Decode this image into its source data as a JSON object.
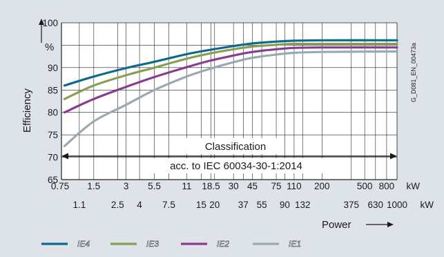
{
  "chart_data": {
    "type": "line",
    "xlabel": "Power",
    "ylabel": "Efficiency",
    "unit_label": "%",
    "ylim": [
      65,
      100
    ],
    "yticks": [
      65,
      70,
      75,
      80,
      85,
      90,
      95,
      100
    ],
    "x_unit": "kW",
    "x_categories_top": [
      "0.75",
      "1.5",
      "3",
      "5.5",
      "11",
      "18.5",
      "30",
      "45",
      "75",
      "110",
      "200",
      "500",
      "800"
    ],
    "x_categories_bottom": [
      "1.1",
      "2.5",
      "4",
      "7.5",
      "15",
      "20",
      "37",
      "55",
      "90",
      "132",
      "375",
      "630",
      "1000"
    ],
    "x_scale": "categorical-log",
    "grid": true,
    "series": [
      {
        "name": "IE4",
        "color": "#0d6a8f",
        "x": [
          0.75,
          1.5,
          3,
          5.5,
          11,
          18.5,
          30,
          45,
          75,
          110,
          200,
          1000
        ],
        "y": [
          86.0,
          88.0,
          89.9,
          91.3,
          93.0,
          94.0,
          94.8,
          95.4,
          95.8,
          96.0,
          96.1,
          96.1
        ]
      },
      {
        "name": "IE3",
        "color": "#8a9e52",
        "x": [
          0.75,
          1.5,
          3,
          5.5,
          11,
          18.5,
          30,
          45,
          75,
          110,
          200,
          1000
        ],
        "y": [
          83.0,
          86.0,
          88.3,
          90.0,
          92.0,
          93.2,
          94.1,
          94.7,
          95.1,
          95.3,
          95.3,
          95.3
        ]
      },
      {
        "name": "IE2",
        "color": "#8b3a8f",
        "x": [
          0.75,
          1.5,
          3,
          5.5,
          11,
          18.5,
          30,
          45,
          75,
          110,
          200,
          1000
        ],
        "y": [
          80.0,
          83.0,
          85.7,
          87.9,
          90.1,
          91.6,
          92.7,
          93.5,
          94.1,
          94.4,
          94.5,
          94.5
        ]
      },
      {
        "name": "IE1",
        "color": "#9aa8b2",
        "x": [
          0.75,
          1.5,
          3,
          5.5,
          11,
          18.5,
          30,
          45,
          75,
          110,
          200,
          1000
        ],
        "y": [
          72.5,
          78.0,
          81.7,
          85.0,
          88.0,
          89.8,
          91.2,
          92.2,
          92.9,
          93.3,
          93.5,
          93.6
        ]
      }
    ],
    "annotations": {
      "classification": "Classification",
      "standard": "acc. to IEC 60034-30-1:2014",
      "figure_id": "G_D081_EN_00473a"
    },
    "legend_placement": "bottom"
  },
  "colors": {
    "panel_bg": "#dde3e9",
    "plot_bg": "#ffffff",
    "grid": "#222222"
  }
}
